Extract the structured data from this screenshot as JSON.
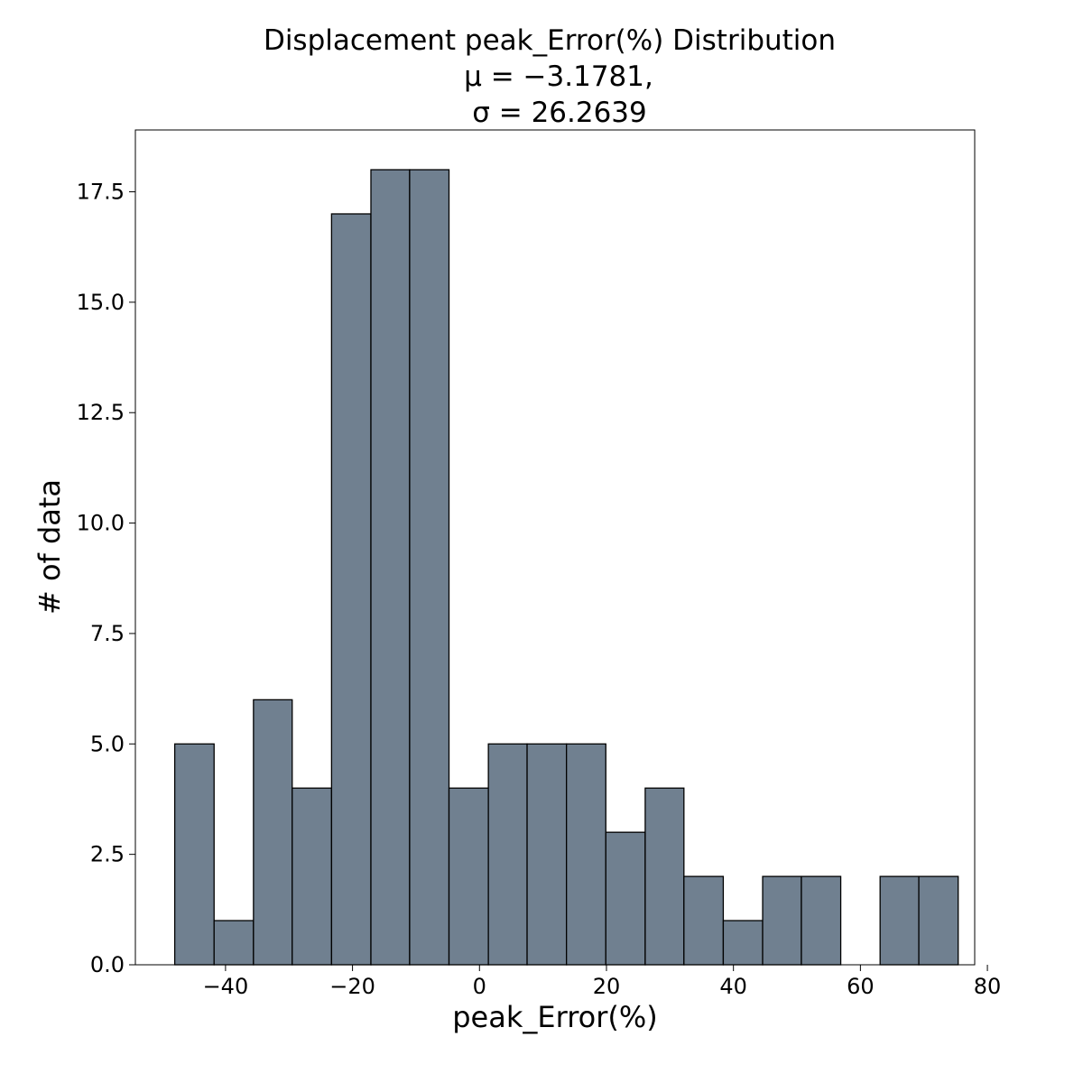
{
  "chart_data": {
    "type": "bar",
    "title": "Displacement peak_Error(%) Distribution",
    "subtitle_lines": [
      "μ = −3.1781,",
      "σ = 26.2639"
    ],
    "xlabel": "peak_Error(%)",
    "ylabel": "# of data",
    "xlim": [
      -54.2,
      78.0
    ],
    "ylim": [
      0,
      18.9
    ],
    "xticks": [
      -40,
      -20,
      0,
      20,
      40,
      60,
      80
    ],
    "xtick_labels": [
      "−40",
      "−20",
      "0",
      "20",
      "40",
      "60",
      "80"
    ],
    "yticks": [
      0.0,
      2.5,
      5.0,
      7.5,
      10.0,
      12.5,
      15.0,
      17.5
    ],
    "ytick_labels": [
      "0.0",
      "2.5",
      "5.0",
      "7.5",
      "10.0",
      "12.5",
      "15.0",
      "17.5"
    ],
    "bin_edges": [
      -48.0,
      -41.8,
      -35.6,
      -29.5,
      -23.3,
      -17.1,
      -11.0,
      -4.8,
      1.4,
      7.5,
      13.7,
      19.9,
      26.1,
      32.2,
      38.4,
      44.6,
      50.7,
      56.9,
      63.1,
      69.2,
      75.4
    ],
    "values": [
      5,
      1,
      6,
      4,
      17,
      18,
      18,
      4,
      5,
      5,
      5,
      3,
      4,
      2,
      1,
      2,
      2,
      0,
      2,
      2
    ],
    "bar_color": "#708090",
    "edge_color": "#000000",
    "grid": false
  }
}
